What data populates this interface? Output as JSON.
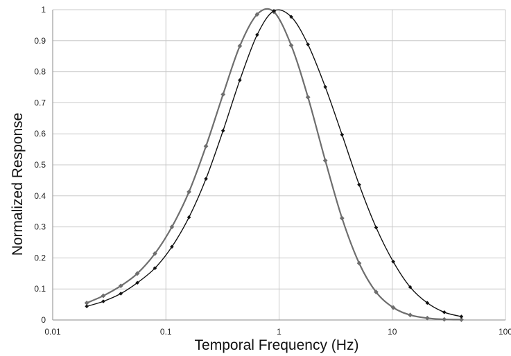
{
  "chart_data": {
    "type": "line",
    "title": "",
    "xlabel": "Temporal Frequency (Hz)",
    "ylabel": "Normalized Response",
    "x_scale": "log",
    "xlim": [
      0.01,
      100
    ],
    "ylim": [
      0,
      1
    ],
    "grid": true,
    "legend": "none",
    "x_ticks": [
      "0.01",
      "0.1",
      "1",
      "10",
      "100"
    ],
    "y_ticks": [
      "0",
      "0.1",
      "0.2",
      "0.3",
      "0.4",
      "0.5",
      "0.6",
      "0.7",
      "0.8",
      "0.9",
      "1"
    ],
    "series": [
      {
        "color": "#6e6e6e",
        "marker": "diamond",
        "x": [
          0.02,
          0.028,
          0.04,
          0.056,
          0.08,
          0.113,
          0.16,
          0.226,
          0.32,
          0.45,
          0.64,
          0.9,
          1.28,
          1.8,
          2.56,
          3.6,
          5.1,
          7.2,
          10.2,
          14.4,
          20.4,
          28.8,
          40.8
        ],
        "values": [
          0.055,
          0.078,
          0.11,
          0.15,
          0.214,
          0.3,
          0.413,
          0.56,
          0.727,
          0.883,
          0.985,
          0.993,
          0.885,
          0.718,
          0.514,
          0.328,
          0.183,
          0.09,
          0.04,
          0.016,
          0.006,
          0.002,
          0.001
        ]
      },
      {
        "color": "#111111",
        "marker": "diamond",
        "x": [
          0.02,
          0.028,
          0.04,
          0.056,
          0.08,
          0.113,
          0.16,
          0.226,
          0.32,
          0.45,
          0.64,
          0.9,
          1.28,
          1.8,
          2.56,
          3.6,
          5.1,
          7.2,
          10.2,
          14.4,
          20.4,
          28.8,
          40.8
        ],
        "values": [
          0.044,
          0.06,
          0.085,
          0.12,
          0.167,
          0.236,
          0.331,
          0.455,
          0.61,
          0.773,
          0.919,
          0.996,
          0.977,
          0.888,
          0.751,
          0.597,
          0.436,
          0.298,
          0.188,
          0.106,
          0.055,
          0.025,
          0.011
        ]
      }
    ]
  }
}
